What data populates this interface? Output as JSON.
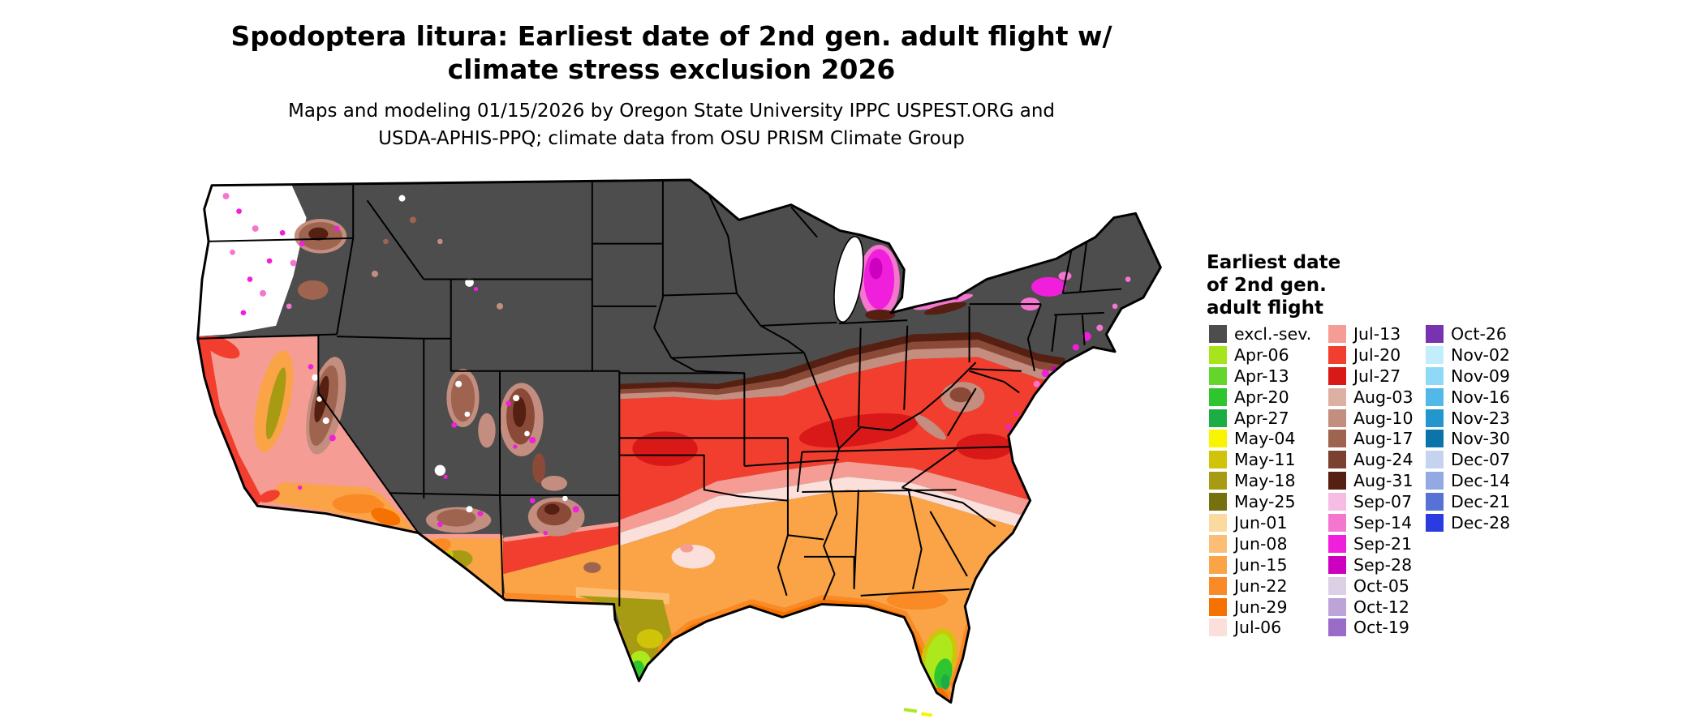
{
  "title": {
    "line1": "Spodoptera litura: Earliest date of 2nd gen. adult flight w/",
    "line2": "climate stress exclusion 2026"
  },
  "subtitle": {
    "line1": "Maps and modeling 01/15/2026 by Oregon State University IPPC USPEST.ORG and",
    "line2": "USDA-APHIS-PPQ; climate data from OSU PRISM Climate Group"
  },
  "map": {
    "type": "choropleth",
    "region": "contiguous-united-states",
    "excluded_color": "#4D4D4D"
  },
  "legend": {
    "title_lines": [
      "Earliest date",
      "of 2nd gen.",
      "adult flight"
    ],
    "columns": [
      [
        {
          "label": "excl.-sev.",
          "color": "#4D4D4D"
        },
        {
          "label": "Apr-06",
          "color": "#A8E41B"
        },
        {
          "label": "Apr-13",
          "color": "#64D52B"
        },
        {
          "label": "Apr-20",
          "color": "#2FC52F"
        },
        {
          "label": "Apr-27",
          "color": "#1CAE45"
        },
        {
          "label": "May-04",
          "color": "#F8F402"
        },
        {
          "label": "May-11",
          "color": "#CFC409"
        },
        {
          "label": "May-18",
          "color": "#A89B14"
        },
        {
          "label": "May-25",
          "color": "#77700F"
        },
        {
          "label": "Jun-01",
          "color": "#FCD99F"
        },
        {
          "label": "Jun-08",
          "color": "#FBBE74"
        },
        {
          "label": "Jun-15",
          "color": "#FAA347"
        },
        {
          "label": "Jun-22",
          "color": "#F98A26"
        },
        {
          "label": "Jun-29",
          "color": "#F57100"
        },
        {
          "label": "Jul-06",
          "color": "#FADFDA"
        }
      ],
      [
        {
          "label": "Jul-13",
          "color": "#F59D94"
        },
        {
          "label": "Jul-20",
          "color": "#F23E2E"
        },
        {
          "label": "Jul-27",
          "color": "#D91818"
        },
        {
          "label": "Aug-03",
          "color": "#DDB0A4"
        },
        {
          "label": "Aug-10",
          "color": "#C38D7F"
        },
        {
          "label": "Aug-17",
          "color": "#9E6450"
        },
        {
          "label": "Aug-24",
          "color": "#7C4030"
        },
        {
          "label": "Aug-31",
          "color": "#551F12"
        },
        {
          "label": "Sep-07",
          "color": "#F6BCE4"
        },
        {
          "label": "Sep-14",
          "color": "#F576CF"
        },
        {
          "label": "Sep-21",
          "color": "#F01FDC"
        },
        {
          "label": "Sep-28",
          "color": "#CC00BE"
        },
        {
          "label": "Oct-05",
          "color": "#DCD0E6"
        },
        {
          "label": "Oct-12",
          "color": "#BCA4D8"
        },
        {
          "label": "Oct-19",
          "color": "#9A6CC8"
        }
      ],
      [
        {
          "label": "Oct-26",
          "color": "#7733B0"
        },
        {
          "label": "Nov-02",
          "color": "#C2EEFB"
        },
        {
          "label": "Nov-09",
          "color": "#8FD9F6"
        },
        {
          "label": "Nov-16",
          "color": "#51B8E8"
        },
        {
          "label": "Nov-23",
          "color": "#2396CE"
        },
        {
          "label": "Nov-30",
          "color": "#0B74A8"
        },
        {
          "label": "Dec-07",
          "color": "#C6D3EE"
        },
        {
          "label": "Dec-14",
          "color": "#93A9E4"
        },
        {
          "label": "Dec-21",
          "color": "#5572D4"
        },
        {
          "label": "Dec-28",
          "color": "#2A3BE0"
        }
      ]
    ]
  }
}
